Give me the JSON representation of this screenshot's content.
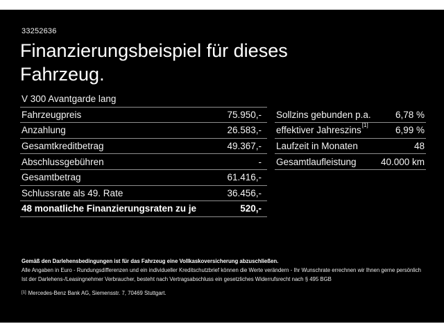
{
  "page": {
    "id_number": "33252636",
    "title": "Finanzierungsbeispiel für dieses Fahrzeug.",
    "model": "V 300 Avantgarde lang"
  },
  "finance_table": {
    "rows": [
      {
        "label": "Fahrzeugpreis",
        "value": "75.950,-"
      },
      {
        "label": "Anzahlung",
        "value": "26.583,-"
      },
      {
        "label": "Gesamtkreditbetrag",
        "value": "49.367,-"
      },
      {
        "label": "Abschlussgebühren",
        "value": "-"
      },
      {
        "label": "Gesamtbetrag",
        "value": "61.416,-"
      },
      {
        "label": "Schlussrate als 49. Rate",
        "value": "36.456,-"
      },
      {
        "label": "48 monatliche Finanzierungsraten zu je",
        "value": "520,-",
        "bold": true
      }
    ]
  },
  "conditions_table": {
    "rows": [
      {
        "label": "Sollzins gebunden p.a.",
        "sup": "",
        "value": "6,78 %"
      },
      {
        "label": "effektiver Jahreszins",
        "sup": "[1]",
        "value": "6,99 %"
      },
      {
        "label": "Laufzeit in Monaten",
        "sup": "",
        "value": "48"
      },
      {
        "label": "Gesamtlaufleistung",
        "sup": "",
        "value": "40.000 km"
      }
    ]
  },
  "footer": {
    "bold_note": "Gemäß den Darlehensbedingungen ist für das Fahrzeug eine Vollkaskoversicherung abzuschließen.",
    "note_line_2": "Alle Angaben in Euro - Rundungsdifferenzen und ein individueller Kreditschutzbrief können die Werte verändern - Ihr Wunschrate errechnen wir Ihnen gerne persönlich",
    "note_line_3": "Ist der Darlehens-/Leasingnehmer Verbraucher, besteht nach Vertragsabschluss ein gesetzliches Widerrufsrecht nach § 495 BGB",
    "footnote_marker": "[1]",
    "footnote_text": "Mercedes-Benz Bank AG, Siemensstr. 7, 70469 Stuttgart."
  },
  "colors": {
    "background": "#000000",
    "letterbox": "#ffffff",
    "text": "#ffffff",
    "divider": "#8f8f8f"
  }
}
